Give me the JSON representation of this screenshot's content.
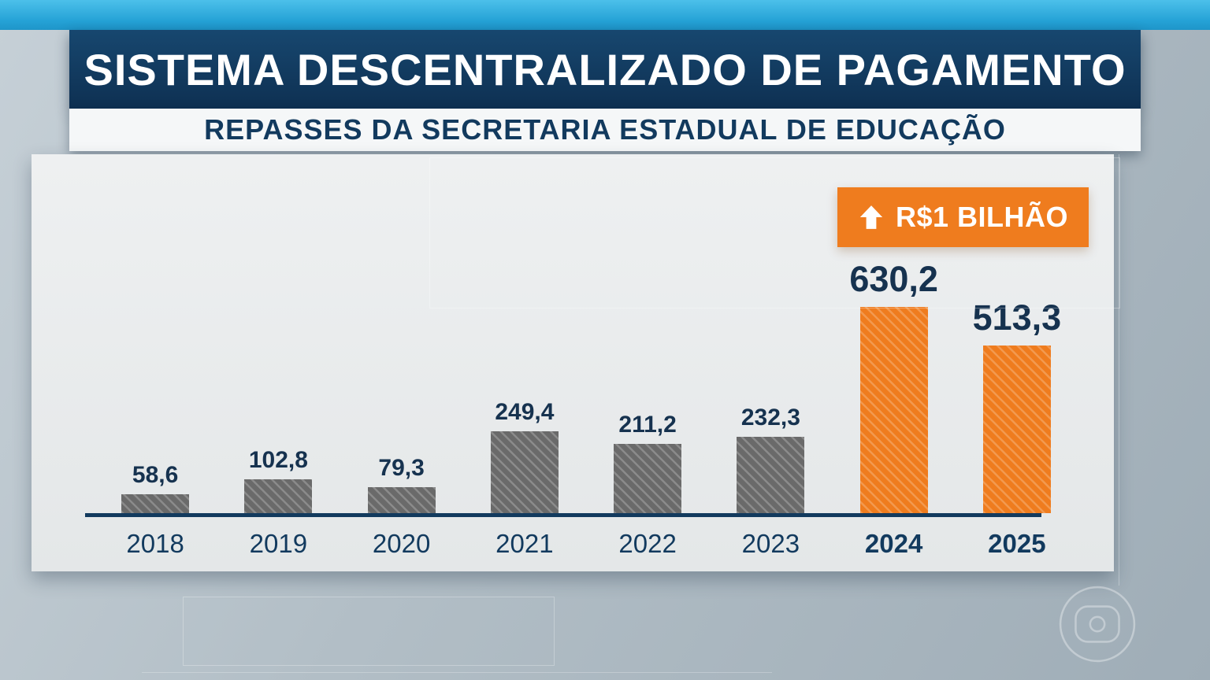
{
  "header": {
    "title": "SISTEMA DESCENTRALIZADO DE PAGAMENTO",
    "subtitle": "REPASSES DA SECRETARIA ESTADUAL DE EDUCAÇÃO"
  },
  "badge": {
    "label": "R$1 BILHÃO"
  },
  "chart_data": {
    "type": "bar",
    "title": "SISTEMA DESCENTRALIZADO DE PAGAMENTO",
    "subtitle": "REPASSES DA SECRETARIA ESTADUAL DE EDUCAÇÃO",
    "categories": [
      "2018",
      "2019",
      "2020",
      "2021",
      "2022",
      "2023",
      "2024",
      "2025"
    ],
    "values": [
      58.6,
      102.8,
      79.3,
      249.4,
      211.2,
      232.3,
      630.2,
      513.3
    ],
    "value_labels": [
      "58,6",
      "102,8",
      "79,3",
      "249,4",
      "211,2",
      "232,3",
      "630,2",
      "513,3"
    ],
    "highlight_from_index": 6,
    "annotation": "R$1 BILHÃO",
    "xlabel": "",
    "ylabel": "",
    "ylim": [
      0,
      650
    ],
    "grid": false,
    "legend": "none",
    "colors": {
      "bar_default": "#6a6a6a",
      "bar_highlight": "#ef7c1e",
      "hatch": "rgba(255,255,255,0.22)",
      "axis": "#123a5e",
      "label_text": "#16324f",
      "badge_bg": "#ef7c1e",
      "badge_text": "#ffffff"
    }
  }
}
